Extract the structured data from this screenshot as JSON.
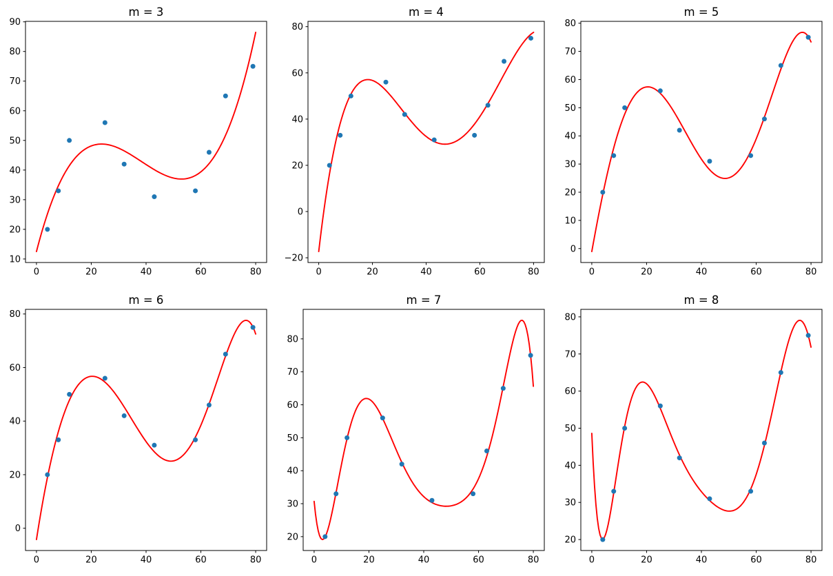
{
  "figure": {
    "background_color": "#ffffff",
    "grid": {
      "rows": 2,
      "cols": 3
    }
  },
  "chart_data": {
    "type": "scatter",
    "description": "Polynomial least-squares fits of degree m to the same 10 data points",
    "x": [
      4,
      8,
      12,
      25,
      32,
      43,
      58,
      63,
      69,
      79
    ],
    "y": [
      20,
      33,
      50,
      56,
      42,
      31,
      33,
      46,
      65,
      75
    ],
    "point_color": "#1f77b4",
    "fit": {
      "model": "polynomial-least-squares",
      "curve_color": "#ff0000",
      "curve_x_range": [
        0,
        80
      ]
    },
    "grid_lines": false,
    "legend": false,
    "xlim": [
      -4,
      84
    ],
    "xtick_labels": [
      "0",
      "20",
      "40",
      "60",
      "80"
    ],
    "subplots": [
      {
        "title": "m = 3",
        "degree": 3,
        "ytick_labels": [
          "10",
          "20",
          "30",
          "40",
          "50",
          "60",
          "70",
          "80",
          "90"
        ],
        "ylim_approx": [
          8.7,
          90.6
        ]
      },
      {
        "title": "m = 4",
        "degree": 4,
        "ytick_labels": [
          "−20",
          "0",
          "20",
          "40",
          "60",
          "80"
        ],
        "ylim_approx": [
          -22.6,
          82.8
        ]
      },
      {
        "title": "m = 5",
        "degree": 5,
        "ytick_labels": [
          "0",
          "10",
          "20",
          "30",
          "40",
          "50",
          "60",
          "70",
          "80"
        ],
        "ylim_approx": [
          -4.9,
          80.9
        ]
      },
      {
        "title": "m = 6",
        "degree": 6,
        "ytick_labels": [
          "0",
          "20",
          "40",
          "60",
          "80"
        ],
        "ylim_approx": [
          -8.1,
          82.1
        ]
      },
      {
        "title": "m = 7",
        "degree": 7,
        "ytick_labels": [
          "20",
          "30",
          "40",
          "50",
          "60",
          "70",
          "80"
        ],
        "ylim_approx": [
          16.2,
          89.3
        ]
      },
      {
        "title": "m = 8",
        "degree": 8,
        "ytick_labels": [
          "20",
          "30",
          "40",
          "50",
          "60",
          "70",
          "80"
        ],
        "ylim_approx": [
          16.8,
          82.2
        ]
      }
    ]
  }
}
